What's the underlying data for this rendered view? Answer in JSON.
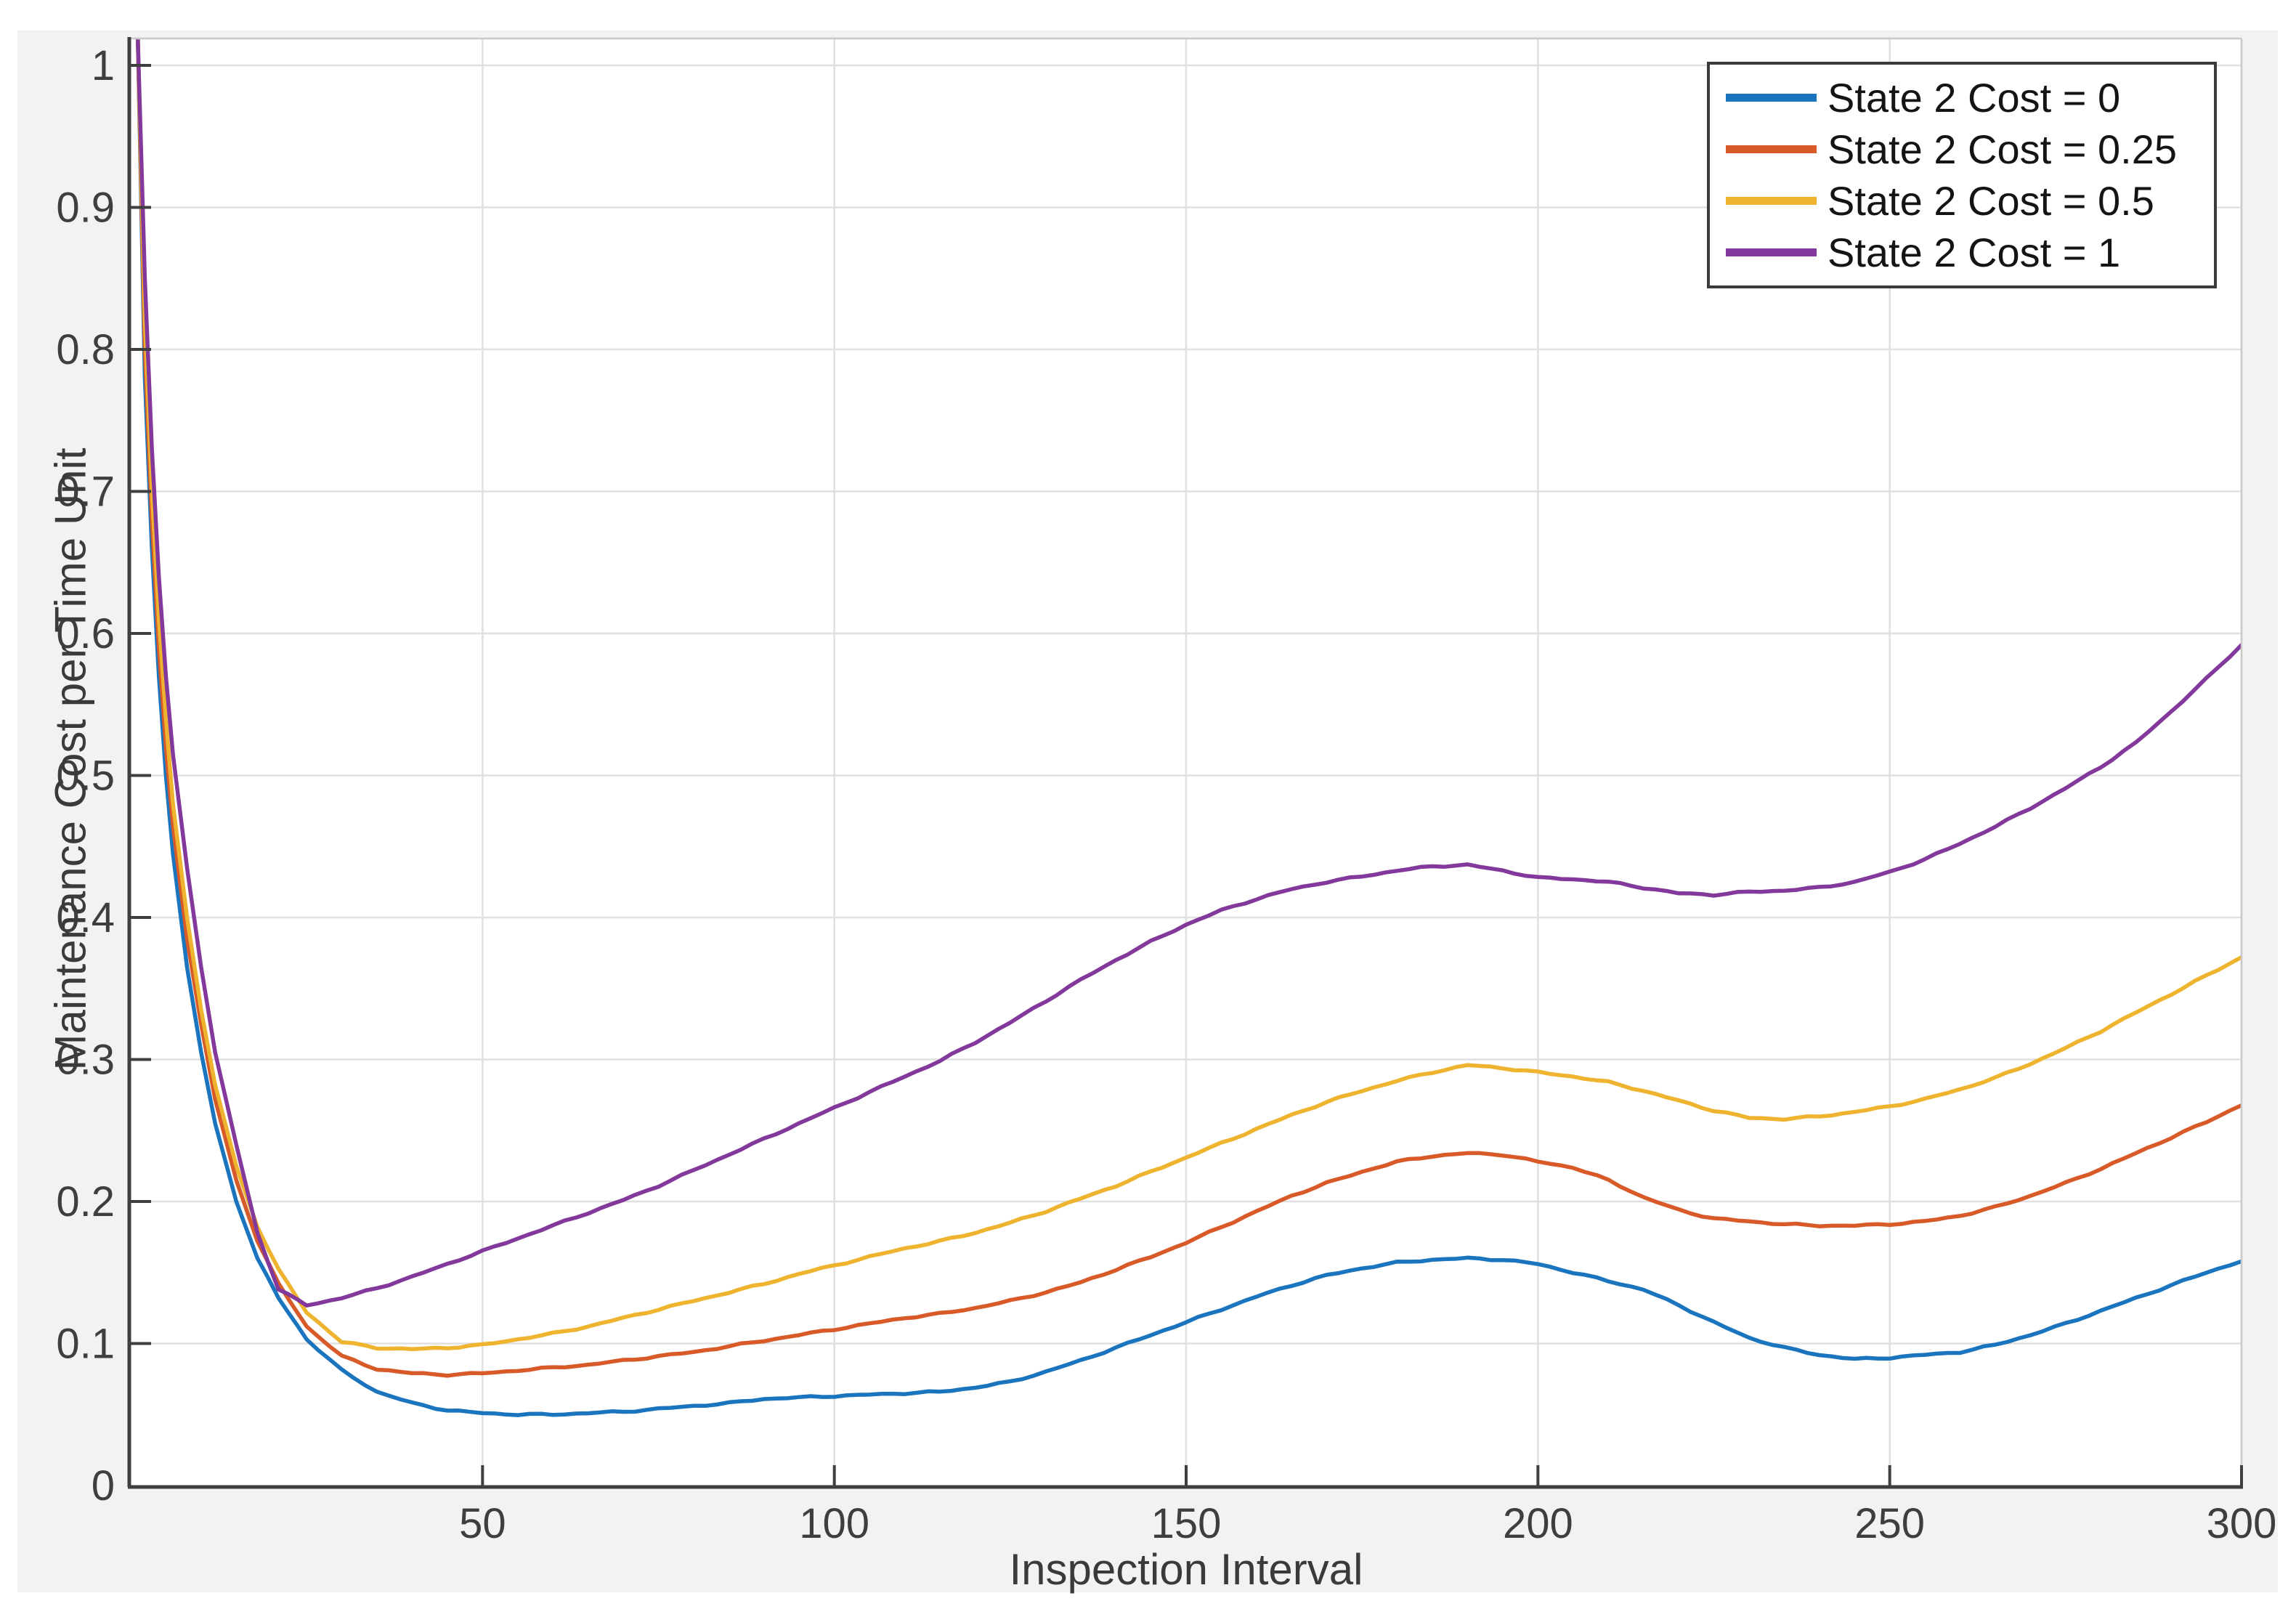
{
  "figure": {
    "background": "#ffffff",
    "panel_background": "#f2f2f2",
    "axis_color": "#3f3f3f",
    "grid_color": "#e0e0e0",
    "box_edge_light": "#c9c9c9"
  },
  "chart_data": {
    "type": "line",
    "title": "",
    "xlabel": "Inspection Interval",
    "ylabel": "Maintenance Cost per Time Unit",
    "xlim": [
      0,
      300
    ],
    "ylim": [
      0,
      1.02
    ],
    "grid": true,
    "legend_position": "top-right",
    "x_ticks": [
      50,
      100,
      150,
      200,
      250,
      300
    ],
    "x_tick_labels": [
      "50",
      "100",
      "150",
      "200",
      "250",
      "300"
    ],
    "y_ticks": [
      0,
      0.1,
      0.2,
      0.3,
      0.4,
      0.5,
      0.6,
      0.7,
      0.8,
      0.9,
      1
    ],
    "y_tick_labels": [
      "0",
      "0.1",
      "0.2",
      "0.3",
      "0.4",
      "0.5",
      "0.6",
      "0.7",
      "0.8",
      "0.9",
      "1"
    ],
    "x": [
      1,
      2,
      3,
      4,
      5,
      6,
      8,
      10,
      12,
      15,
      18,
      21,
      25,
      30,
      35,
      40,
      45,
      50,
      55,
      60,
      65,
      70,
      75,
      80,
      85,
      90,
      95,
      100,
      105,
      110,
      115,
      120,
      125,
      130,
      135,
      140,
      145,
      150,
      155,
      160,
      165,
      170,
      175,
      180,
      185,
      190,
      195,
      200,
      205,
      210,
      215,
      220,
      225,
      230,
      235,
      240,
      245,
      250,
      255,
      260,
      265,
      270,
      275,
      280,
      285,
      290,
      295,
      300
    ],
    "series": [
      {
        "name": "State 2 Cost = 0",
        "color": "#1b74be",
        "y": [
          1.02,
          0.78,
          0.66,
          0.57,
          0.5,
          0.445,
          0.365,
          0.305,
          0.255,
          0.2,
          0.16,
          0.132,
          0.103,
          0.081,
          0.066,
          0.058,
          0.053,
          0.051,
          0.05,
          0.05,
          0.051,
          0.052,
          0.054,
          0.056,
          0.058,
          0.061,
          0.062,
          0.063,
          0.064,
          0.065,
          0.066,
          0.069,
          0.073,
          0.08,
          0.088,
          0.097,
          0.106,
          0.115,
          0.124,
          0.133,
          0.141,
          0.148,
          0.153,
          0.157,
          0.159,
          0.16,
          0.159,
          0.156,
          0.15,
          0.144,
          0.138,
          0.127,
          0.115,
          0.104,
          0.097,
          0.092,
          0.089,
          0.09,
          0.092,
          0.094,
          0.099,
          0.106,
          0.114,
          0.123,
          0.132,
          0.141,
          0.15,
          0.158
        ]
      },
      {
        "name": "State 2 Cost = 0.25",
        "color": "#d85a28",
        "y": [
          1.02,
          0.8,
          0.68,
          0.59,
          0.52,
          0.465,
          0.385,
          0.325,
          0.272,
          0.215,
          0.172,
          0.142,
          0.112,
          0.091,
          0.082,
          0.079,
          0.078,
          0.079,
          0.081,
          0.083,
          0.085,
          0.088,
          0.091,
          0.094,
          0.098,
          0.102,
          0.106,
          0.11,
          0.114,
          0.118,
          0.121,
          0.125,
          0.13,
          0.136,
          0.143,
          0.152,
          0.161,
          0.171,
          0.182,
          0.193,
          0.204,
          0.213,
          0.221,
          0.228,
          0.232,
          0.234,
          0.233,
          0.228,
          0.224,
          0.215,
          0.203,
          0.194,
          0.188,
          0.186,
          0.184,
          0.183,
          0.183,
          0.184,
          0.186,
          0.19,
          0.196,
          0.204,
          0.213,
          0.223,
          0.234,
          0.245,
          0.256,
          0.268
        ]
      },
      {
        "name": "State 2 Cost = 0.5",
        "color": "#eeb42f",
        "y": [
          1.02,
          0.82,
          0.7,
          0.61,
          0.54,
          0.48,
          0.4,
          0.335,
          0.282,
          0.225,
          0.182,
          0.152,
          0.122,
          0.101,
          0.097,
          0.096,
          0.097,
          0.099,
          0.103,
          0.107,
          0.112,
          0.118,
          0.124,
          0.13,
          0.136,
          0.142,
          0.149,
          0.155,
          0.161,
          0.167,
          0.172,
          0.178,
          0.185,
          0.193,
          0.202,
          0.211,
          0.221,
          0.231,
          0.241,
          0.251,
          0.261,
          0.27,
          0.278,
          0.285,
          0.291,
          0.296,
          0.294,
          0.291,
          0.288,
          0.284,
          0.278,
          0.271,
          0.264,
          0.259,
          0.258,
          0.26,
          0.263,
          0.267,
          0.272,
          0.279,
          0.287,
          0.297,
          0.308,
          0.32,
          0.333,
          0.346,
          0.359,
          0.372
        ]
      },
      {
        "name": "State 2 Cost = 1",
        "color": "#83399b",
        "y": [
          1.02,
          0.85,
          0.73,
          0.64,
          0.57,
          0.515,
          0.435,
          0.365,
          0.305,
          0.24,
          0.178,
          0.138,
          0.127,
          0.132,
          0.139,
          0.147,
          0.156,
          0.165,
          0.174,
          0.183,
          0.192,
          0.201,
          0.211,
          0.222,
          0.233,
          0.244,
          0.255,
          0.266,
          0.277,
          0.288,
          0.299,
          0.312,
          0.326,
          0.341,
          0.356,
          0.37,
          0.383,
          0.395,
          0.405,
          0.413,
          0.42,
          0.425,
          0.429,
          0.433,
          0.436,
          0.437,
          0.433,
          0.428,
          0.427,
          0.425,
          0.421,
          0.417,
          0.416,
          0.418,
          0.419,
          0.421,
          0.425,
          0.432,
          0.441,
          0.452,
          0.464,
          0.477,
          0.491,
          0.506,
          0.523,
          0.545,
          0.568,
          0.592
        ]
      }
    ]
  }
}
